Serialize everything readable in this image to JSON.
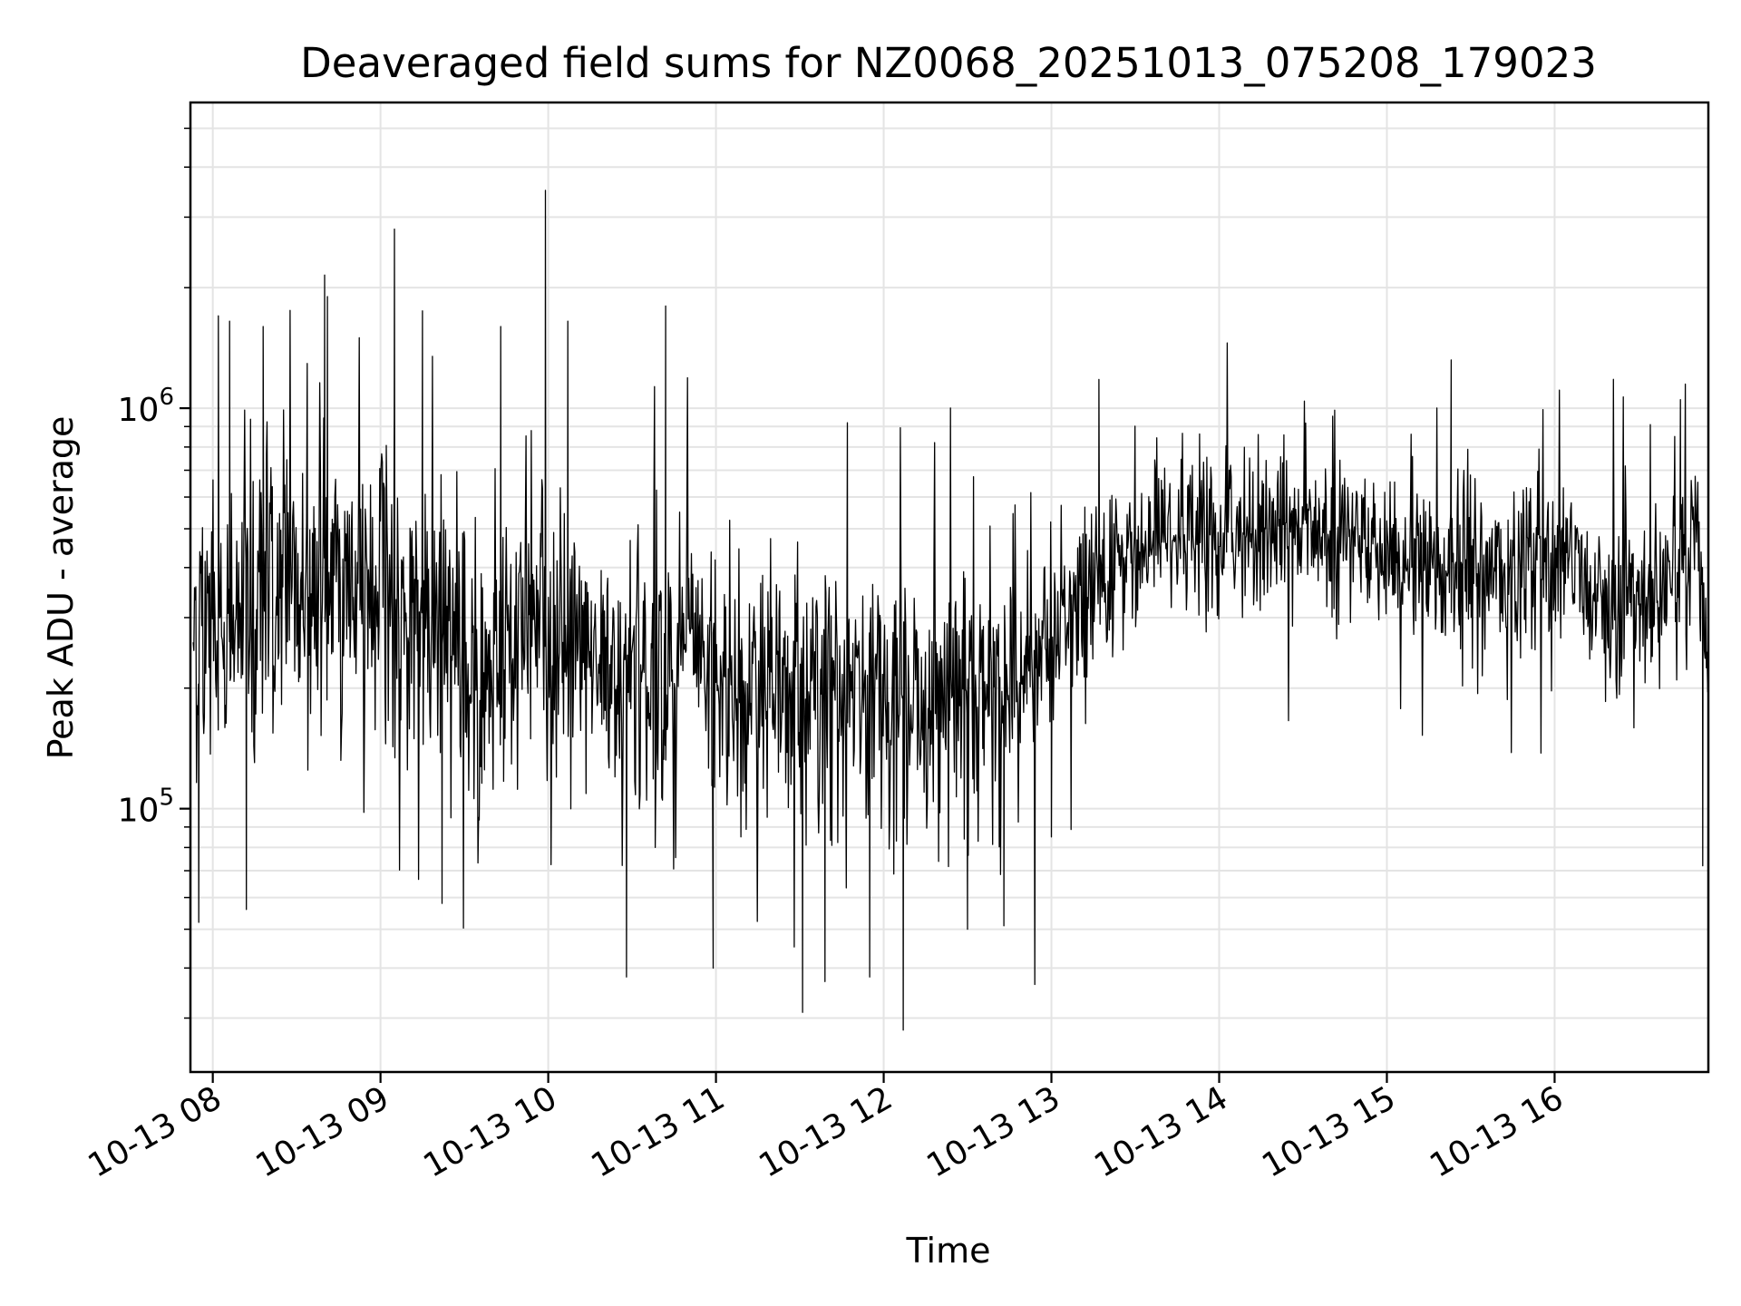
{
  "chart_data": {
    "type": "line",
    "title": "Deaveraged field sums for NZ0068_20251013_075208_179023",
    "xlabel": "Time",
    "ylabel": "Peak ADU - average",
    "yscale": "log",
    "xlim": [
      "2025-10-13 07:52",
      "2025-10-13 16:55"
    ],
    "ylim": [
      22000,
      5800000
    ],
    "grid": true,
    "line_color": "#000000",
    "xticks": [
      "10-13 08",
      "10-13 09",
      "10-13 10",
      "10-13 11",
      "10-13 12",
      "10-13 13",
      "10-13 14",
      "10-13 15",
      "10-13 16"
    ],
    "xtick_times": [
      "2025-10-13 08:00",
      "2025-10-13 09:00",
      "2025-10-13 10:00",
      "2025-10-13 11:00",
      "2025-10-13 12:00",
      "2025-10-13 13:00",
      "2025-10-13 14:00",
      "2025-10-13 15:00",
      "2025-10-13 16:00"
    ],
    "yticks": [
      {
        "base": "10",
        "exp": "5",
        "value": 100000
      },
      {
        "base": "10",
        "exp": "6",
        "value": 1000000
      }
    ],
    "series": [
      {
        "x": [
          "2025-10-13 07:53",
          "2025-10-13 08:05",
          "2025-10-13 08:20",
          "2025-10-13 08:35",
          "2025-10-13 08:50",
          "2025-10-13 09:05",
          "2025-10-13 09:20",
          "2025-10-13 09:35",
          "2025-10-13 09:50",
          "2025-10-13 10:05",
          "2025-10-13 10:20",
          "2025-10-13 10:35",
          "2025-10-13 10:50",
          "2025-10-13 11:05",
          "2025-10-13 11:20",
          "2025-10-13 11:35",
          "2025-10-13 11:50",
          "2025-10-13 12:05",
          "2025-10-13 12:20",
          "2025-10-13 12:35",
          "2025-10-13 12:50",
          "2025-10-13 13:05",
          "2025-10-13 13:20",
          "2025-10-13 13:35",
          "2025-10-13 13:50",
          "2025-10-13 14:05",
          "2025-10-13 14:20",
          "2025-10-13 14:35",
          "2025-10-13 14:50",
          "2025-10-13 15:05",
          "2025-10-13 15:20",
          "2025-10-13 15:35",
          "2025-10-13 15:50",
          "2025-10-13 16:05",
          "2025-10-13 16:20",
          "2025-10-13 16:35",
          "2025-10-13 16:50",
          "2025-10-13 16:55"
        ],
        "values": [
          300000,
          260000,
          420000,
          350000,
          380000,
          320000,
          290000,
          200000,
          280000,
          230000,
          230000,
          220000,
          240000,
          190000,
          190000,
          200000,
          210000,
          185000,
          170000,
          190000,
          210000,
          280000,
          360000,
          450000,
          470000,
          490000,
          500000,
          480000,
          470000,
          420000,
          390000,
          380000,
          400000,
          380000,
          330000,
          330000,
          420000,
          300000
        ],
        "spread_log10": [
          0.32,
          0.3,
          0.3,
          0.3,
          0.3,
          0.33,
          0.3,
          0.28,
          0.3,
          0.3,
          0.28,
          0.28,
          0.28,
          0.28,
          0.28,
          0.28,
          0.26,
          0.26,
          0.27,
          0.27,
          0.22,
          0.2,
          0.18,
          0.16,
          0.16,
          0.16,
          0.16,
          0.16,
          0.16,
          0.17,
          0.17,
          0.17,
          0.17,
          0.17,
          0.18,
          0.18,
          0.17,
          0.3
        ],
        "peaks": [
          {
            "x": "2025-10-13 08:02",
            "y": 1700000
          },
          {
            "x": "2025-10-13 08:06",
            "y": 1650000
          },
          {
            "x": "2025-10-13 08:18",
            "y": 1600000
          },
          {
            "x": "2025-10-13 08:40",
            "y": 2150000
          },
          {
            "x": "2025-10-13 08:41",
            "y": 1900000
          },
          {
            "x": "2025-10-13 09:05",
            "y": 2800000
          },
          {
            "x": "2025-10-13 09:15",
            "y": 1750000
          },
          {
            "x": "2025-10-13 09:43",
            "y": 1600000
          },
          {
            "x": "2025-10-13 09:59",
            "y": 3500000
          },
          {
            "x": "2025-10-13 10:07",
            "y": 1650000
          },
          {
            "x": "2025-10-13 10:42",
            "y": 1800000
          },
          {
            "x": "2025-10-13 11:47",
            "y": 920000
          },
          {
            "x": "2025-10-13 13:17",
            "y": 1180000
          },
          {
            "x": "2025-10-13 15:23",
            "y": 1320000
          },
          {
            "x": "2025-10-13 16:45",
            "y": 1050000
          }
        ],
        "troughs": [
          {
            "x": "2025-10-13 07:55",
            "y": 52000
          },
          {
            "x": "2025-10-13 08:12",
            "y": 56000
          },
          {
            "x": "2025-10-13 09:22",
            "y": 58000
          },
          {
            "x": "2025-10-13 10:28",
            "y": 38000
          },
          {
            "x": "2025-10-13 10:59",
            "y": 40000
          },
          {
            "x": "2025-10-13 11:31",
            "y": 31000
          },
          {
            "x": "2025-10-13 11:39",
            "y": 37000
          },
          {
            "x": "2025-10-13 11:55",
            "y": 38000
          },
          {
            "x": "2025-10-13 12:07",
            "y": 28000
          },
          {
            "x": "2025-10-13 12:30",
            "y": 50000
          },
          {
            "x": "2025-10-13 12:43",
            "y": 51000
          },
          {
            "x": "2025-10-13 13:00",
            "y": 85000
          },
          {
            "x": "2025-10-13 16:53",
            "y": 72000
          }
        ]
      }
    ]
  }
}
